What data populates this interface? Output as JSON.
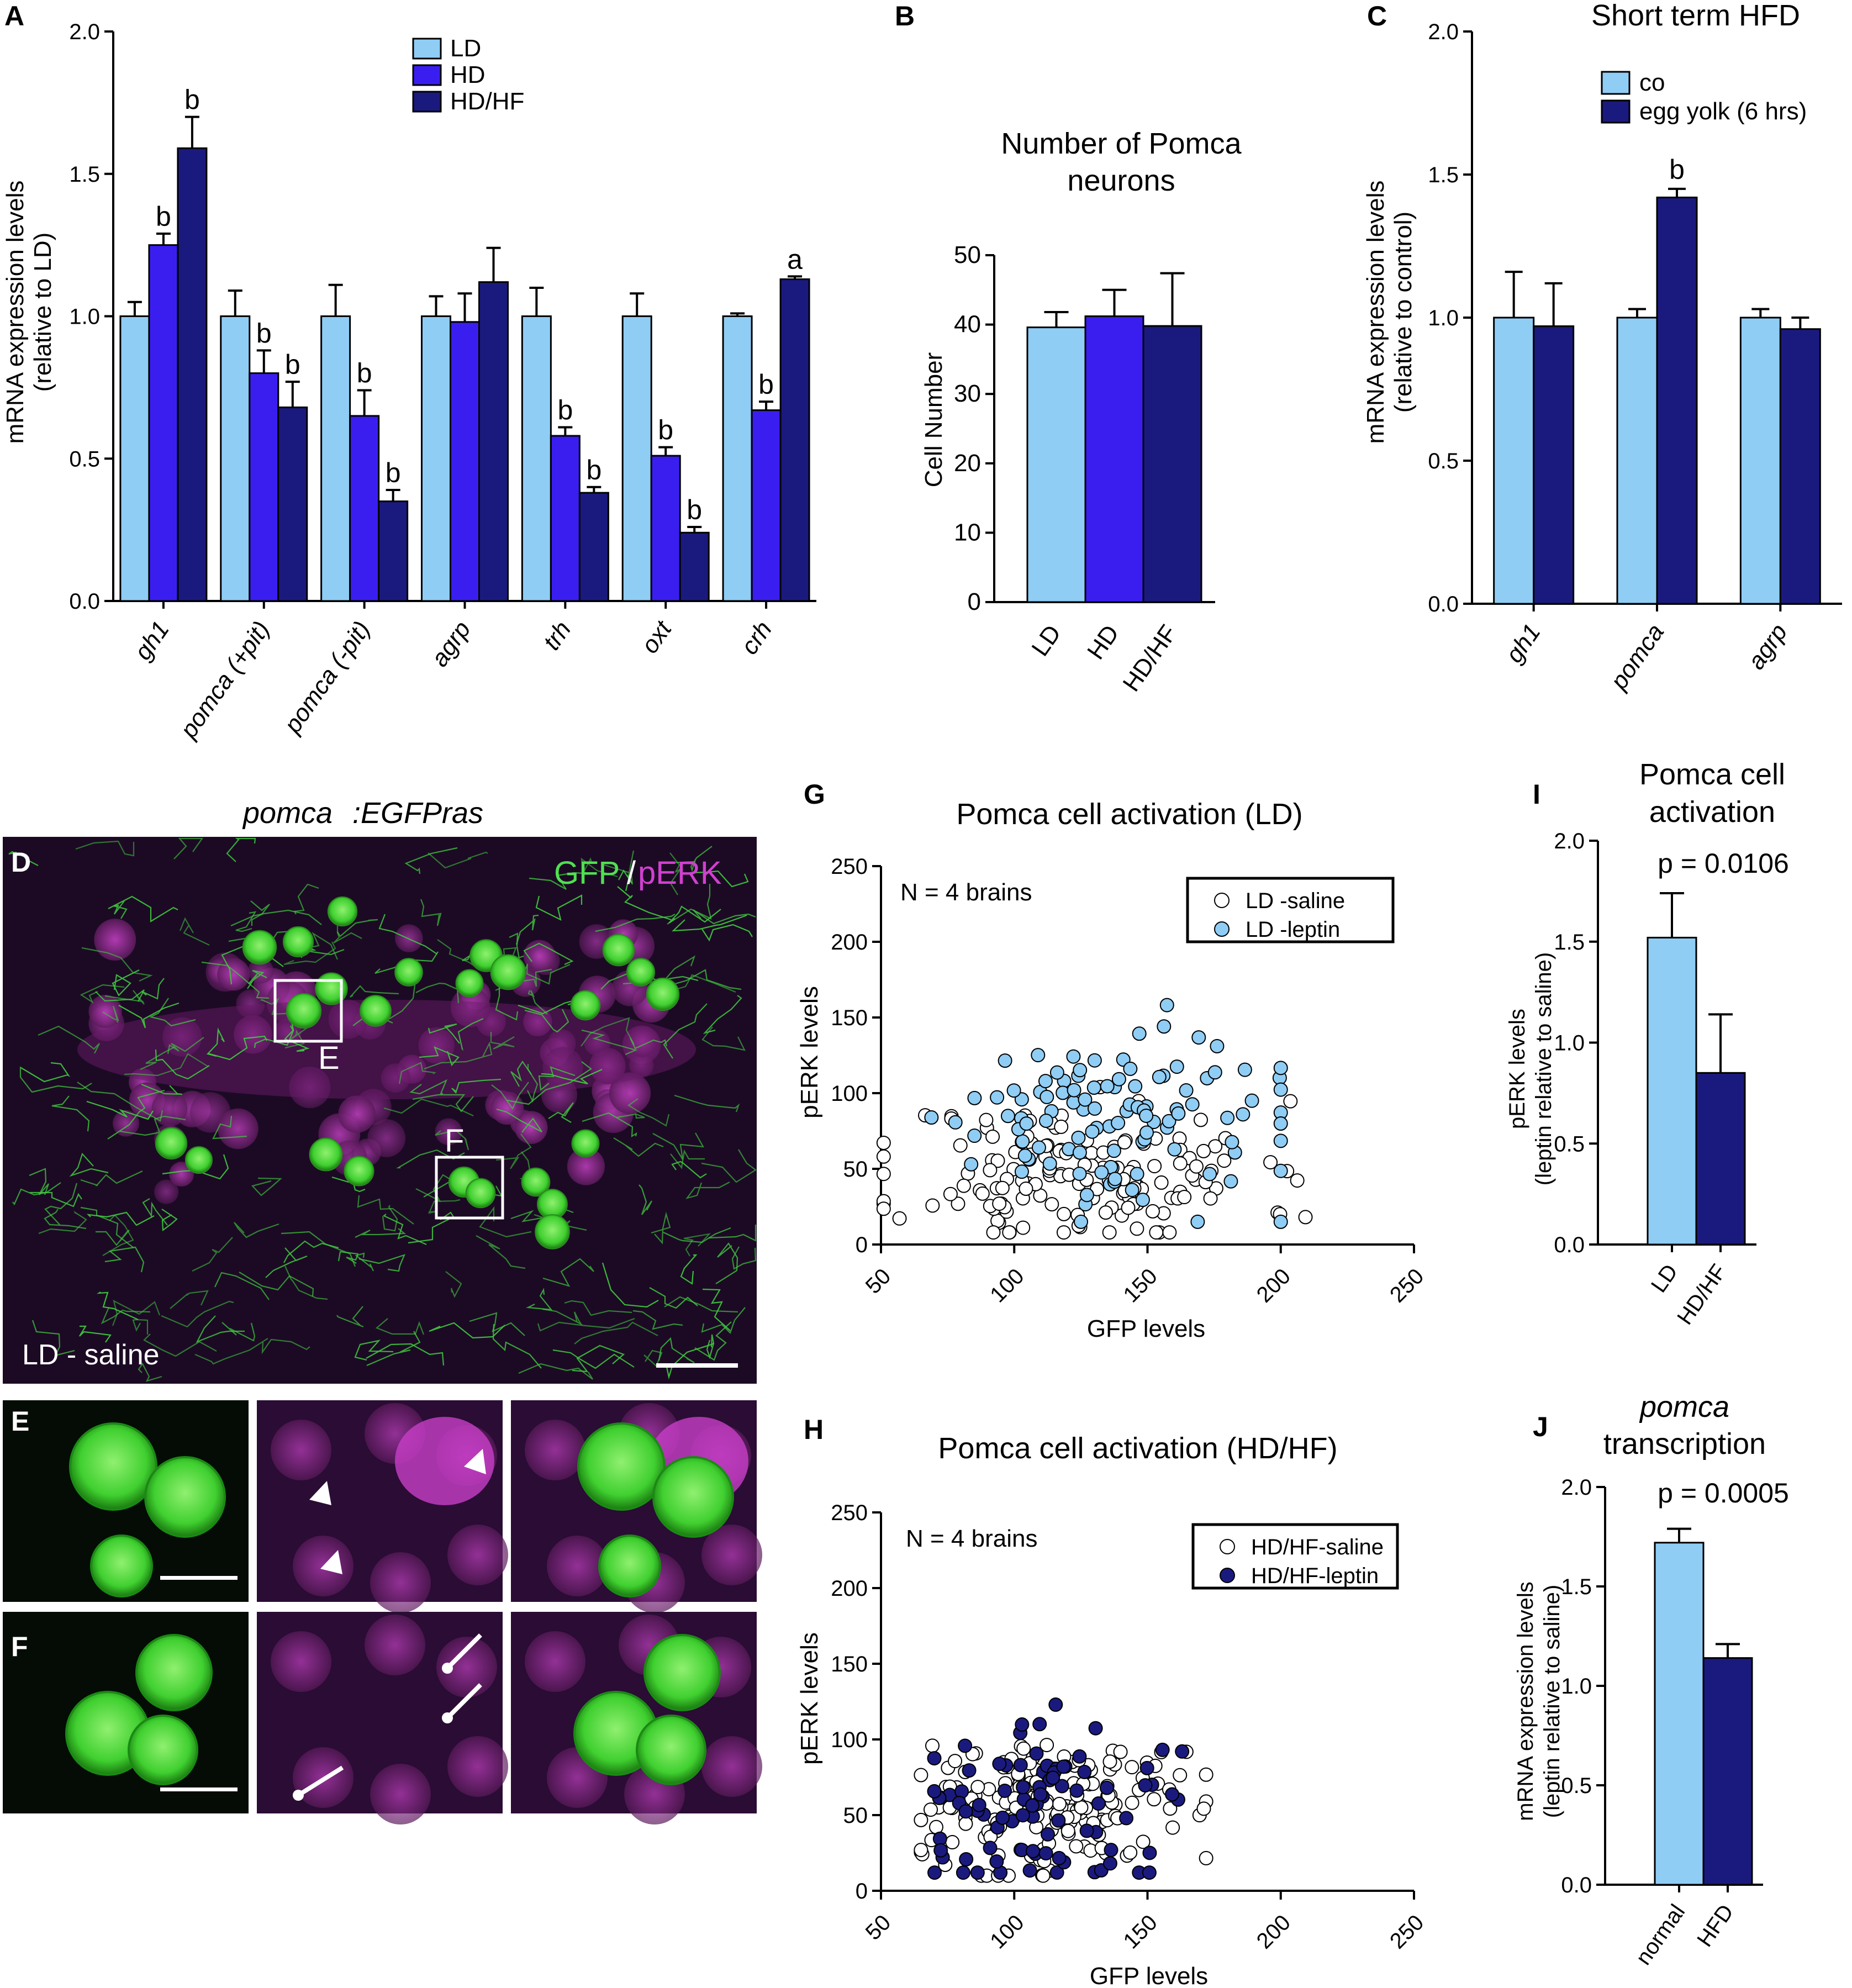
{
  "colors": {
    "LD": "#8fcdf5",
    "HD": "#3a1ef0",
    "HDHF": "#1a1a7e",
    "co": "#8fcdf5",
    "egg_yolk": "#1a1a7e",
    "saline_fill": "#ffffff",
    "ld_leptin_fill": "#8fcdf5",
    "hdhf_leptin_fill": "#1a1a7e",
    "gfp": "#40e040",
    "perk": "#d040d0",
    "micro_bg": "#1a0a22"
  },
  "panel_labels": {
    "A": "A",
    "B": "B",
    "C": "C",
    "D": "D",
    "E": "E",
    "F": "F",
    "G": "G",
    "H": "H",
    "I": "I",
    "J": "J"
  },
  "chart_data": [
    {
      "panel": "A",
      "type": "bar",
      "title": "",
      "ylabel_line1": "mRNA expression levels",
      "ylabel_line2": "(relative to LD)",
      "ylim": [
        0,
        2.0
      ],
      "yticks": [
        "0.0",
        "0.5",
        "1.0",
        "1.5",
        "2.0"
      ],
      "categories": [
        "gh1",
        "pomca (+pit)",
        "pomca (-pit)",
        "agrp",
        "trh",
        "oxt",
        "crh"
      ],
      "series": [
        {
          "name": "LD",
          "values": [
            1.0,
            1.0,
            1.0,
            1.0,
            1.0,
            1.0,
            1.0
          ],
          "errors": [
            0.05,
            0.09,
            0.11,
            0.07,
            0.1,
            0.08,
            0.01
          ],
          "labels": [
            "",
            "",
            "",
            "",
            "",
            "",
            ""
          ]
        },
        {
          "name": "HD",
          "values": [
            1.25,
            0.8,
            0.65,
            0.98,
            0.58,
            0.51,
            0.67
          ],
          "errors": [
            0.04,
            0.08,
            0.09,
            0.1,
            0.03,
            0.03,
            0.03
          ],
          "labels": [
            "b",
            "b",
            "b",
            "",
            "b",
            "b",
            "b"
          ]
        },
        {
          "name": "HD/HF",
          "values": [
            1.59,
            0.68,
            0.35,
            1.12,
            0.38,
            0.24,
            1.13
          ],
          "errors": [
            0.11,
            0.09,
            0.04,
            0.12,
            0.02,
            0.02,
            0.01
          ],
          "labels": [
            "b",
            "b",
            "b",
            "",
            "b",
            "b",
            "a"
          ]
        }
      ]
    },
    {
      "panel": "B",
      "type": "bar",
      "title_line1": "Number of Pomca",
      "title_line2": "neurons",
      "ylabel": "Cell Number",
      "ylim": [
        0,
        50
      ],
      "yticks": [
        "0",
        "10",
        "20",
        "30",
        "40",
        "50"
      ],
      "categories": [
        "LD",
        "HD",
        "HD/HF"
      ],
      "values": [
        39.6,
        41.2,
        39.8
      ],
      "errors": [
        2.2,
        3.8,
        7.6
      ]
    },
    {
      "panel": "C",
      "type": "bar",
      "title": "Short term HFD",
      "ylabel_line1": "mRNA expression levels",
      "ylabel_line2": "(relative to control)",
      "ylim": [
        0,
        2.0
      ],
      "yticks": [
        "0.0",
        "0.5",
        "1.0",
        "1.5",
        "2.0"
      ],
      "categories": [
        "gh1",
        "pomca",
        "agrp"
      ],
      "series": [
        {
          "name": "co",
          "values": [
            1.0,
            1.0,
            1.0
          ],
          "errors": [
            0.16,
            0.03,
            0.03
          ],
          "labels": [
            "",
            "",
            ""
          ]
        },
        {
          "name": "egg yolk (6 hrs)",
          "values": [
            0.97,
            1.42,
            0.96
          ],
          "errors": [
            0.15,
            0.03,
            0.04
          ],
          "labels": [
            "",
            "b",
            ""
          ]
        }
      ]
    },
    {
      "panel": "G",
      "type": "scatter",
      "title": "Pomca cell activation (LD)",
      "annotation": "N = 4 brains",
      "xlabel": "GFP levels",
      "ylabel": "pERK levels",
      "xlim": [
        50,
        250
      ],
      "ylim": [
        0,
        250
      ],
      "xticks": [
        "50",
        "100",
        "150",
        "200",
        "250"
      ],
      "yticks": [
        "0",
        "50",
        "100",
        "150",
        "200",
        "250"
      ],
      "series": [
        {
          "name": "LD -saline",
          "seed": 11,
          "n": 150,
          "x_center": 125,
          "x_spread": 34,
          "y_center": 45,
          "y_spread": 25,
          "x_range": [
            51,
            218
          ],
          "y_range": [
            8,
            104
          ]
        },
        {
          "name": "LD -leptin",
          "seed": 29,
          "n": 110,
          "x_center": 135,
          "x_spread": 32,
          "y_center": 85,
          "y_spread": 28,
          "x_range": [
            60,
            200
          ],
          "y_range": [
            15,
            170
          ]
        }
      ]
    },
    {
      "panel": "H",
      "type": "scatter",
      "title": "Pomca cell activation (HD/HF)",
      "annotation": "N = 4 brains",
      "xlabel": "GFP levels",
      "ylabel": "pERK levels",
      "xlim": [
        50,
        250
      ],
      "ylim": [
        0,
        250
      ],
      "xticks": [
        "50",
        "100",
        "150",
        "200",
        "250"
      ],
      "yticks": [
        "0",
        "50",
        "100",
        "150",
        "200",
        "250"
      ],
      "series": [
        {
          "name": "HD/HF-saline",
          "seed": 7,
          "n": 170,
          "x_center": 112,
          "x_spread": 25,
          "y_center": 55,
          "y_spread": 22,
          "x_range": [
            65,
            172
          ],
          "y_range": [
            10,
            130
          ]
        },
        {
          "name": "HD/HF-leptin",
          "seed": 41,
          "n": 85,
          "x_center": 115,
          "x_spread": 28,
          "y_center": 55,
          "y_spread": 28,
          "x_range": [
            70,
            182
          ],
          "y_range": [
            12,
            165
          ]
        }
      ]
    },
    {
      "panel": "I",
      "type": "bar",
      "title_line1": "Pomca cell",
      "title_line2": "activation",
      "annotation": "p = 0.0106",
      "ylabel_line1": "pERK levels",
      "ylabel_line2": "(leptin relative to saline)",
      "ylim": [
        0,
        2.0
      ],
      "yticks": [
        "0.0",
        "0.5",
        "1.0",
        "1.5",
        "2.0"
      ],
      "categories": [
        "LD",
        "HD/HF"
      ],
      "values": [
        1.52,
        0.85
      ],
      "errors": [
        0.22,
        0.29
      ]
    },
    {
      "panel": "J",
      "type": "bar",
      "title_line1": "pomca",
      "title_line2": "transcription",
      "annotation": "p = 0.0005",
      "ylabel_line1": "mRNA expression levels",
      "ylabel_line2": "(leptin relative to saline)",
      "ylim": [
        0,
        2.0
      ],
      "yticks": [
        "0.0",
        "0.5",
        "1.0",
        "1.5",
        "2.0"
      ],
      "categories": [
        "normal",
        "HFD"
      ],
      "values": [
        1.72,
        1.14
      ],
      "errors": [
        0.07,
        0.07
      ]
    }
  ],
  "micrograph": {
    "title_part1": "pomca",
    "title_part2": ":EGFPras",
    "stain_gfp": "GFP",
    "stain_slash": "/",
    "stain_perk": "pERK",
    "condition": "LD - saline",
    "box_e_label": "E",
    "box_f_label": "F"
  }
}
